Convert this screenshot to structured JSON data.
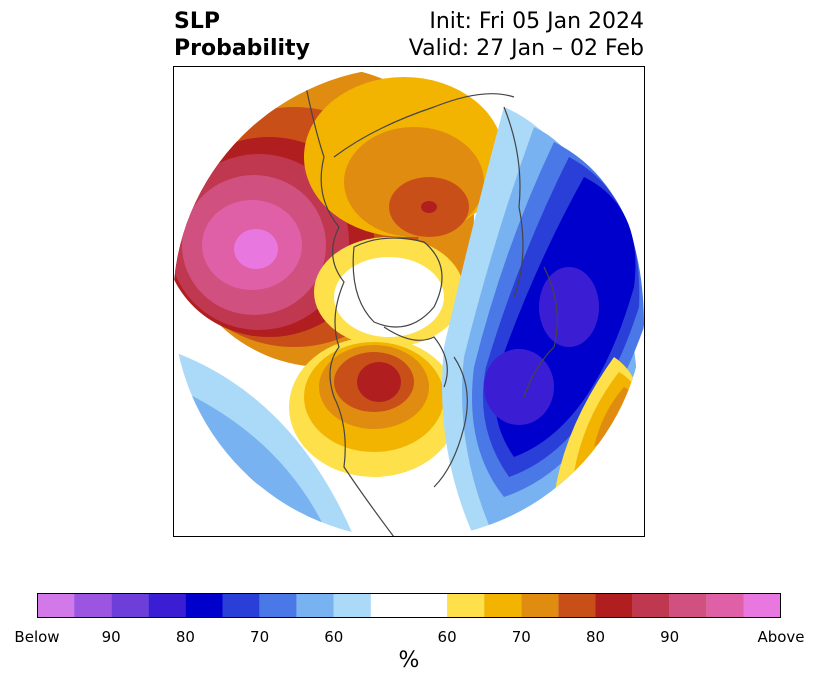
{
  "title": {
    "left_line1": "SLP",
    "left_line2": "Probability",
    "right_line1": "Init: Fri 05 Jan 2024",
    "right_line2": "Valid: 27 Jan – 02 Feb"
  },
  "map": {
    "projection": "north-polar-stereographic",
    "field": "SLP",
    "features": [
      {
        "name": "north-pacific-above-anomaly",
        "category": "Above",
        "peak": "Above"
      },
      {
        "name": "siberia-above-anomaly",
        "category": "Above",
        "peak": "80"
      },
      {
        "name": "north-america-above-anomaly",
        "category": "Above",
        "peak": "80"
      },
      {
        "name": "north-atlantic-below-anomaly",
        "category": "Below",
        "peak": "90"
      },
      {
        "name": "arctic-near-normal",
        "category": "Normal",
        "peak": ""
      }
    ]
  },
  "colorbar": {
    "colors": [
      "#d278e8",
      "#9b55e0",
      "#6d3ed8",
      "#3b1ed4",
      "#0000cc",
      "#2a3ed8",
      "#4a78e6",
      "#78b2f0",
      "#aadaf8",
      "#ffffff",
      "#fde04a",
      "#f2b400",
      "#e08c10",
      "#c85018",
      "#b01e20",
      "#c03850",
      "#d05080",
      "#e060a8",
      "#e878e0"
    ],
    "tick_labels": [
      "Below",
      "90",
      "80",
      "70",
      "60",
      "60",
      "70",
      "80",
      "90",
      "Above"
    ],
    "unit": "%"
  }
}
